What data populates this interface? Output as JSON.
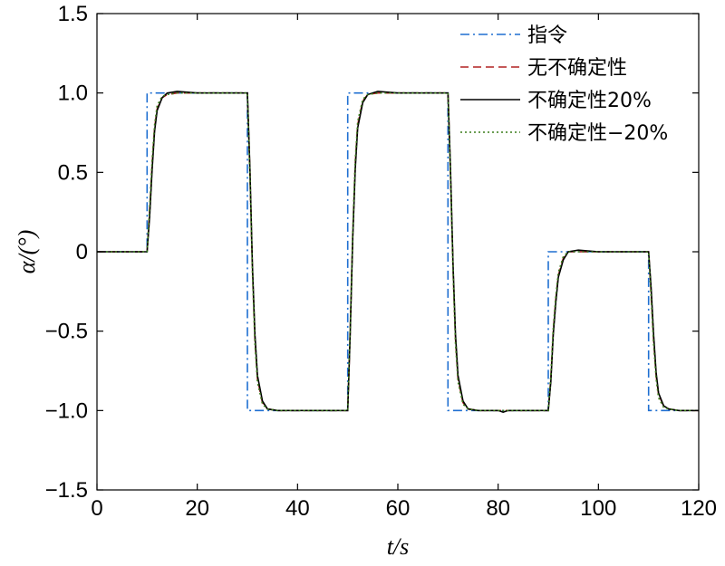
{
  "chart_data": {
    "type": "line",
    "xlabel": "t/s",
    "ylabel": "α/(°)",
    "xlim": [
      0,
      120
    ],
    "ylim": [
      -1.5,
      1.5
    ],
    "xticks": [
      0,
      20,
      40,
      60,
      80,
      100,
      120
    ],
    "xtick_labels": [
      "0",
      "20",
      "40",
      "60",
      "80",
      "100",
      "120"
    ],
    "yticks": [
      -1.5,
      -1.0,
      -0.5,
      0,
      0.5,
      1.0,
      1.5
    ],
    "ytick_labels": [
      "−1.5",
      "−1.0",
      "−0.5",
      "0",
      "0.5",
      "1.0",
      "1.5"
    ],
    "grid": false,
    "legend_position": "top-right",
    "series": [
      {
        "name": "指令",
        "color": "#1f6fd1",
        "style": "dashdot",
        "x": [
          0,
          10,
          10,
          30,
          30,
          50,
          50,
          70,
          70,
          90,
          90,
          110,
          110,
          120
        ],
        "y": [
          0,
          0,
          1,
          1,
          -1,
          -1,
          1,
          1,
          -1,
          -1,
          0,
          0,
          -1,
          -1
        ]
      },
      {
        "name": "无不确定性",
        "color": "#b22222",
        "style": "dashed",
        "x": [
          0,
          10,
          10.5,
          11,
          11.5,
          12,
          13,
          14,
          16,
          20,
          30,
          30.5,
          31,
          31.5,
          32,
          33,
          34,
          36,
          40,
          50,
          50.5,
          51,
          51.5,
          52,
          53,
          54,
          56,
          60,
          70,
          70.5,
          71,
          71.5,
          72,
          73,
          74,
          76,
          80,
          90,
          90.5,
          91,
          91.5,
          92,
          93,
          94,
          96,
          100,
          110,
          110.5,
          111,
          111.5,
          112,
          113,
          114,
          116,
          120
        ],
        "y": [
          0,
          0,
          0.25,
          0.55,
          0.78,
          0.9,
          0.97,
          0.99,
          1.0,
          1.0,
          1.0,
          0.5,
          -0.1,
          -0.55,
          -0.8,
          -0.95,
          -0.99,
          -1.0,
          -1.0,
          -1.0,
          -0.5,
          0.1,
          0.55,
          0.8,
          0.95,
          0.99,
          1.0,
          1.0,
          1.0,
          0.5,
          -0.1,
          -0.55,
          -0.8,
          -0.95,
          -0.99,
          -1.0,
          -1.0,
          -1.0,
          -0.8,
          -0.5,
          -0.3,
          -0.15,
          -0.04,
          0.0,
          0.0,
          0.0,
          0.0,
          -0.25,
          -0.55,
          -0.78,
          -0.9,
          -0.97,
          -0.99,
          -1.0,
          -1.0
        ]
      },
      {
        "name": "不确定性20%",
        "color": "#000000",
        "style": "solid",
        "x": [
          0,
          10,
          10.5,
          11,
          11.5,
          12,
          13,
          14,
          16,
          20,
          30,
          30.5,
          31,
          31.5,
          32,
          33,
          34,
          36,
          40,
          50,
          50.5,
          51,
          51.5,
          52,
          53,
          54,
          56,
          60,
          70,
          70.5,
          71,
          71.5,
          72,
          73,
          74,
          76,
          80,
          81,
          82,
          90,
          90.5,
          91,
          91.5,
          92,
          93,
          94,
          96,
          100,
          110,
          110.5,
          111,
          111.5,
          112,
          113,
          114,
          116,
          120
        ],
        "y": [
          0,
          0,
          0.22,
          0.52,
          0.76,
          0.89,
          0.97,
          1.0,
          1.01,
          1.0,
          1.0,
          0.52,
          -0.08,
          -0.52,
          -0.78,
          -0.94,
          -0.99,
          -1.0,
          -1.0,
          -1.0,
          -0.52,
          0.08,
          0.52,
          0.78,
          0.94,
          0.99,
          1.01,
          1.0,
          1.0,
          0.52,
          -0.08,
          -0.52,
          -0.78,
          -0.94,
          -0.99,
          -1.0,
          -1.0,
          -1.01,
          -1.0,
          -1.0,
          -0.82,
          -0.52,
          -0.32,
          -0.16,
          -0.05,
          0.0,
          0.01,
          0.0,
          0.0,
          -0.22,
          -0.52,
          -0.76,
          -0.89,
          -0.97,
          -0.99,
          -1.0,
          -1.0
        ]
      },
      {
        "name": "不确定性−20%",
        "color": "#3a7d1a",
        "style": "dotted",
        "x": [
          0,
          10,
          10.5,
          11,
          11.5,
          12,
          13,
          14,
          16,
          20,
          30,
          30.5,
          31,
          31.5,
          32,
          33,
          34,
          36,
          40,
          50,
          50.5,
          51,
          51.5,
          52,
          53,
          54,
          56,
          60,
          70,
          70.5,
          71,
          71.5,
          72,
          73,
          74,
          76,
          80,
          90,
          90.5,
          91,
          91.5,
          92,
          93,
          94,
          96,
          100,
          110,
          110.5,
          111,
          111.5,
          112,
          113,
          114,
          116,
          120
        ],
        "y": [
          0,
          0,
          0.28,
          0.58,
          0.8,
          0.92,
          0.98,
          0.99,
          1.0,
          1.0,
          1.0,
          0.48,
          -0.12,
          -0.58,
          -0.82,
          -0.96,
          -0.99,
          -1.0,
          -1.0,
          -1.0,
          -0.48,
          0.12,
          0.58,
          0.82,
          0.96,
          0.99,
          1.0,
          1.0,
          1.0,
          0.48,
          -0.12,
          -0.58,
          -0.82,
          -0.96,
          -0.99,
          -1.0,
          -1.0,
          -1.0,
          -0.78,
          -0.48,
          -0.28,
          -0.13,
          -0.03,
          0.0,
          0.0,
          0.0,
          0.0,
          -0.28,
          -0.58,
          -0.8,
          -0.92,
          -0.98,
          -0.99,
          -1.0,
          -1.0
        ]
      }
    ]
  }
}
